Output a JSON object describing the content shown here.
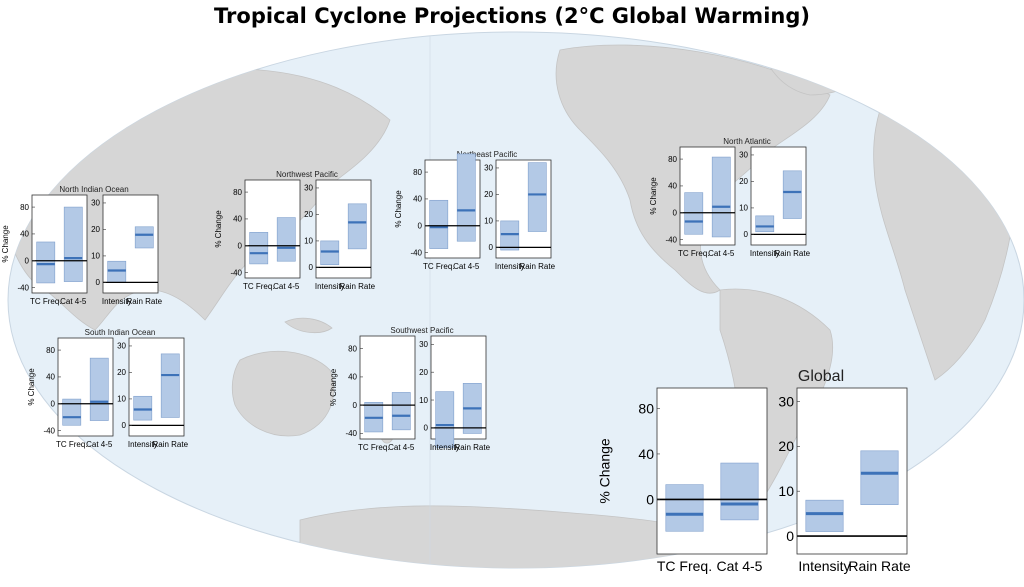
{
  "title": "Tropical Cyclone Projections (2°C Global Warming)",
  "colors": {
    "box_fill": "#b3c9e6",
    "box_stroke": "#7f9fcc",
    "median": "#3d72b8",
    "map_land": "#d6d6d6",
    "map_ocean": "#e6f0f8"
  },
  "chart_data": [
    {
      "name": "North Indian Ocean",
      "type": "box",
      "left": {
        "ylabel": "% Change",
        "categories": [
          "TC Freq.",
          "Cat 4-5"
        ],
        "yticks": [
          -40,
          0,
          40,
          80
        ],
        "ylim": [
          -48,
          98
        ],
        "boxes": [
          {
            "low": -33,
            "high": 28,
            "median": -5,
            "wlow": -33,
            "whigh": 28
          },
          {
            "low": -31,
            "high": 80,
            "median": 4,
            "wlow": -31,
            "whigh": 80
          }
        ]
      },
      "right": {
        "categories": [
          "Intensity",
          "Rain Rate"
        ],
        "yticks": [
          0,
          10,
          20,
          30
        ],
        "ylim": [
          -4,
          33
        ],
        "boxes": [
          {
            "low": 0,
            "high": 8,
            "median": 4.5,
            "wlow": 0,
            "whigh": 8
          },
          {
            "low": 13,
            "high": 21,
            "median": 18,
            "wlow": 13,
            "whigh": 21
          }
        ]
      }
    },
    {
      "name": "Northwest Pacific",
      "type": "box",
      "left": {
        "ylabel": "% Change",
        "categories": [
          "TC Freq.",
          "Cat 4-5"
        ],
        "yticks": [
          -40,
          0,
          40,
          80
        ],
        "ylim": [
          -48,
          98
        ],
        "boxes": [
          {
            "low": -27,
            "high": 20,
            "median": -11,
            "wlow": -27,
            "whigh": 20
          },
          {
            "low": -23,
            "high": 42,
            "median": -3,
            "wlow": -23,
            "whigh": 42
          }
        ]
      },
      "right": {
        "categories": [
          "Intensity",
          "Rain Rate"
        ],
        "yticks": [
          0,
          10,
          20,
          30
        ],
        "ylim": [
          -4,
          33
        ],
        "boxes": [
          {
            "low": 1,
            "high": 10,
            "median": 6,
            "wlow": 1,
            "whigh": 10
          },
          {
            "low": 7,
            "high": 24,
            "median": 17,
            "wlow": 7,
            "whigh": 24
          }
        ]
      }
    },
    {
      "name": "Northeast Pacific",
      "type": "box",
      "left": {
        "ylabel": "% Change",
        "categories": [
          "TC Freq.",
          "Cat 4-5"
        ],
        "yticks": [
          -40,
          0,
          40,
          80
        ],
        "ylim": [
          -48,
          98
        ],
        "boxes": [
          {
            "low": -34,
            "high": 38,
            "median": -2,
            "wlow": -34,
            "whigh": 38
          },
          {
            "low": -23,
            "high": 107,
            "median": 23,
            "wlow": -23,
            "whigh": 107
          }
        ]
      },
      "right": {
        "categories": [
          "Intensity",
          "Rain Rate"
        ],
        "yticks": [
          0,
          10,
          20,
          30
        ],
        "ylim": [
          -4,
          33
        ],
        "boxes": [
          {
            "low": -1,
            "high": 10,
            "median": 5,
            "wlow": -1,
            "whigh": 10
          },
          {
            "low": 6,
            "high": 32,
            "median": 20,
            "wlow": 6,
            "whigh": 32
          }
        ]
      }
    },
    {
      "name": "North Atlantic",
      "type": "box",
      "left": {
        "ylabel": "% Change",
        "categories": [
          "TC Freq.",
          "Cat 4-5"
        ],
        "yticks": [
          -40,
          0,
          40,
          80
        ],
        "ylim": [
          -48,
          98
        ],
        "boxes": [
          {
            "low": -32,
            "high": 30,
            "median": -13,
            "wlow": -32,
            "whigh": 30
          },
          {
            "low": -36,
            "high": 83,
            "median": 9,
            "wlow": -36,
            "whigh": 83
          }
        ]
      },
      "right": {
        "categories": [
          "Intensity",
          "Rain Rate"
        ],
        "yticks": [
          0,
          10,
          20,
          30
        ],
        "ylim": [
          -4,
          33
        ],
        "boxes": [
          {
            "low": 1,
            "high": 7,
            "median": 3,
            "wlow": 1,
            "whigh": 7
          },
          {
            "low": 6,
            "high": 24,
            "median": 16,
            "wlow": 6,
            "whigh": 24
          }
        ]
      }
    },
    {
      "name": "South Indian Ocean",
      "type": "box",
      "left": {
        "ylabel": "% Change",
        "categories": [
          "TC Freq.",
          "Cat 4-5"
        ],
        "yticks": [
          -40,
          0,
          40,
          80
        ],
        "ylim": [
          -48,
          98
        ],
        "boxes": [
          {
            "low": -32,
            "high": 7,
            "median": -20,
            "wlow": -32,
            "whigh": 7
          },
          {
            "low": -25,
            "high": 68,
            "median": 3,
            "wlow": -25,
            "whigh": 68
          }
        ]
      },
      "right": {
        "categories": [
          "Intensity",
          "Rain Rate"
        ],
        "yticks": [
          0,
          10,
          20,
          30
        ],
        "ylim": [
          -4,
          33
        ],
        "boxes": [
          {
            "low": 2,
            "high": 11,
            "median": 6,
            "wlow": 2,
            "whigh": 11
          },
          {
            "low": 3,
            "high": 27,
            "median": 19,
            "wlow": 3,
            "whigh": 27
          }
        ]
      }
    },
    {
      "name": "Southwest Pacific",
      "type": "box",
      "left": {
        "ylabel": "% Change",
        "categories": [
          "TC Freq.",
          "Cat 4-5"
        ],
        "yticks": [
          -40,
          0,
          40,
          80
        ],
        "ylim": [
          -48,
          98
        ],
        "boxes": [
          {
            "low": -38,
            "high": 4,
            "median": -18,
            "wlow": -38,
            "whigh": 4
          },
          {
            "low": -35,
            "high": 18,
            "median": -15,
            "wlow": -35,
            "whigh": 18
          }
        ]
      },
      "right": {
        "categories": [
          "Intensity",
          "Rain Rate"
        ],
        "yticks": [
          0,
          10,
          20,
          30
        ],
        "ylim": [
          -4,
          33
        ],
        "boxes": [
          {
            "low": -7,
            "high": 13,
            "median": 1,
            "wlow": -7,
            "whigh": 13
          },
          {
            "low": -2,
            "high": 16,
            "median": 7,
            "wlow": -2,
            "whigh": 16
          }
        ]
      }
    },
    {
      "name": "Global",
      "type": "box",
      "left": {
        "ylabel": "% Change",
        "categories": [
          "TC Freq.",
          "Cat 4-5"
        ],
        "yticks": [
          0,
          40,
          80
        ],
        "ylim": [
          -48,
          98
        ],
        "boxes": [
          {
            "low": -28,
            "high": 13,
            "median": -13,
            "wlow": -28,
            "whigh": 13
          },
          {
            "low": -18,
            "high": 32,
            "median": -4,
            "wlow": -18,
            "whigh": 32
          }
        ]
      },
      "right": {
        "categories": [
          "Intensity",
          "Rain Rate"
        ],
        "yticks": [
          0,
          10,
          20,
          30
        ],
        "ylim": [
          -4,
          33
        ],
        "boxes": [
          {
            "low": 1,
            "high": 8,
            "median": 5,
            "wlow": 1,
            "whigh": 8
          },
          {
            "low": 7,
            "high": 19,
            "median": 14,
            "wlow": 7,
            "whigh": 19
          }
        ]
      }
    }
  ]
}
